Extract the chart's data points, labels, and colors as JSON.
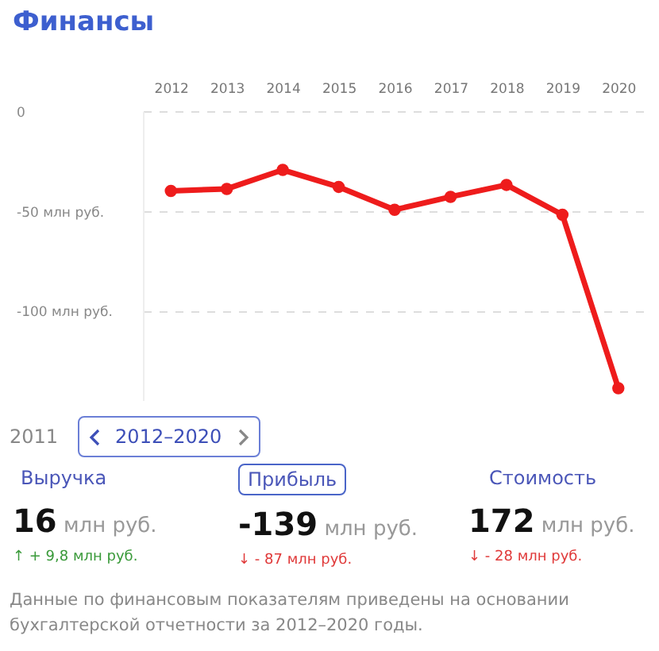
{
  "chart_data": {
    "type": "line",
    "title": "Финансы",
    "categories": [
      "2012",
      "2013",
      "2014",
      "2015",
      "2016",
      "2017",
      "2018",
      "2019",
      "2020"
    ],
    "series": [
      {
        "color": "#ee1c1c",
        "values": [
          -40,
          -39,
          -29.5,
          -38,
          -49.5,
          -43,
          -37,
          -52,
          -139
        ]
      }
    ],
    "ylim": [
      -145,
      0
    ],
    "yticks": [
      0,
      {
        "value": -50,
        "label": "-50 млн руб."
      },
      {
        "value": -100,
        "label": "-100 млн руб."
      }
    ],
    "grid": "y",
    "marker": "circle",
    "annotations": [
      "2011",
      "2012–2020",
      "Выручка",
      "Прибыль",
      "Стоимость",
      "16 млн руб.",
      "-139 млн руб.",
      "172 млн руб.",
      "↑ + 9,8 млн руб.",
      "↓ - 87 млн руб.",
      "↓ - 28 млн руб.",
      "Данные по финансовым показателям приведены на основании бухгалтерской отчетности за 2012–2020 годы."
    ]
  }
}
